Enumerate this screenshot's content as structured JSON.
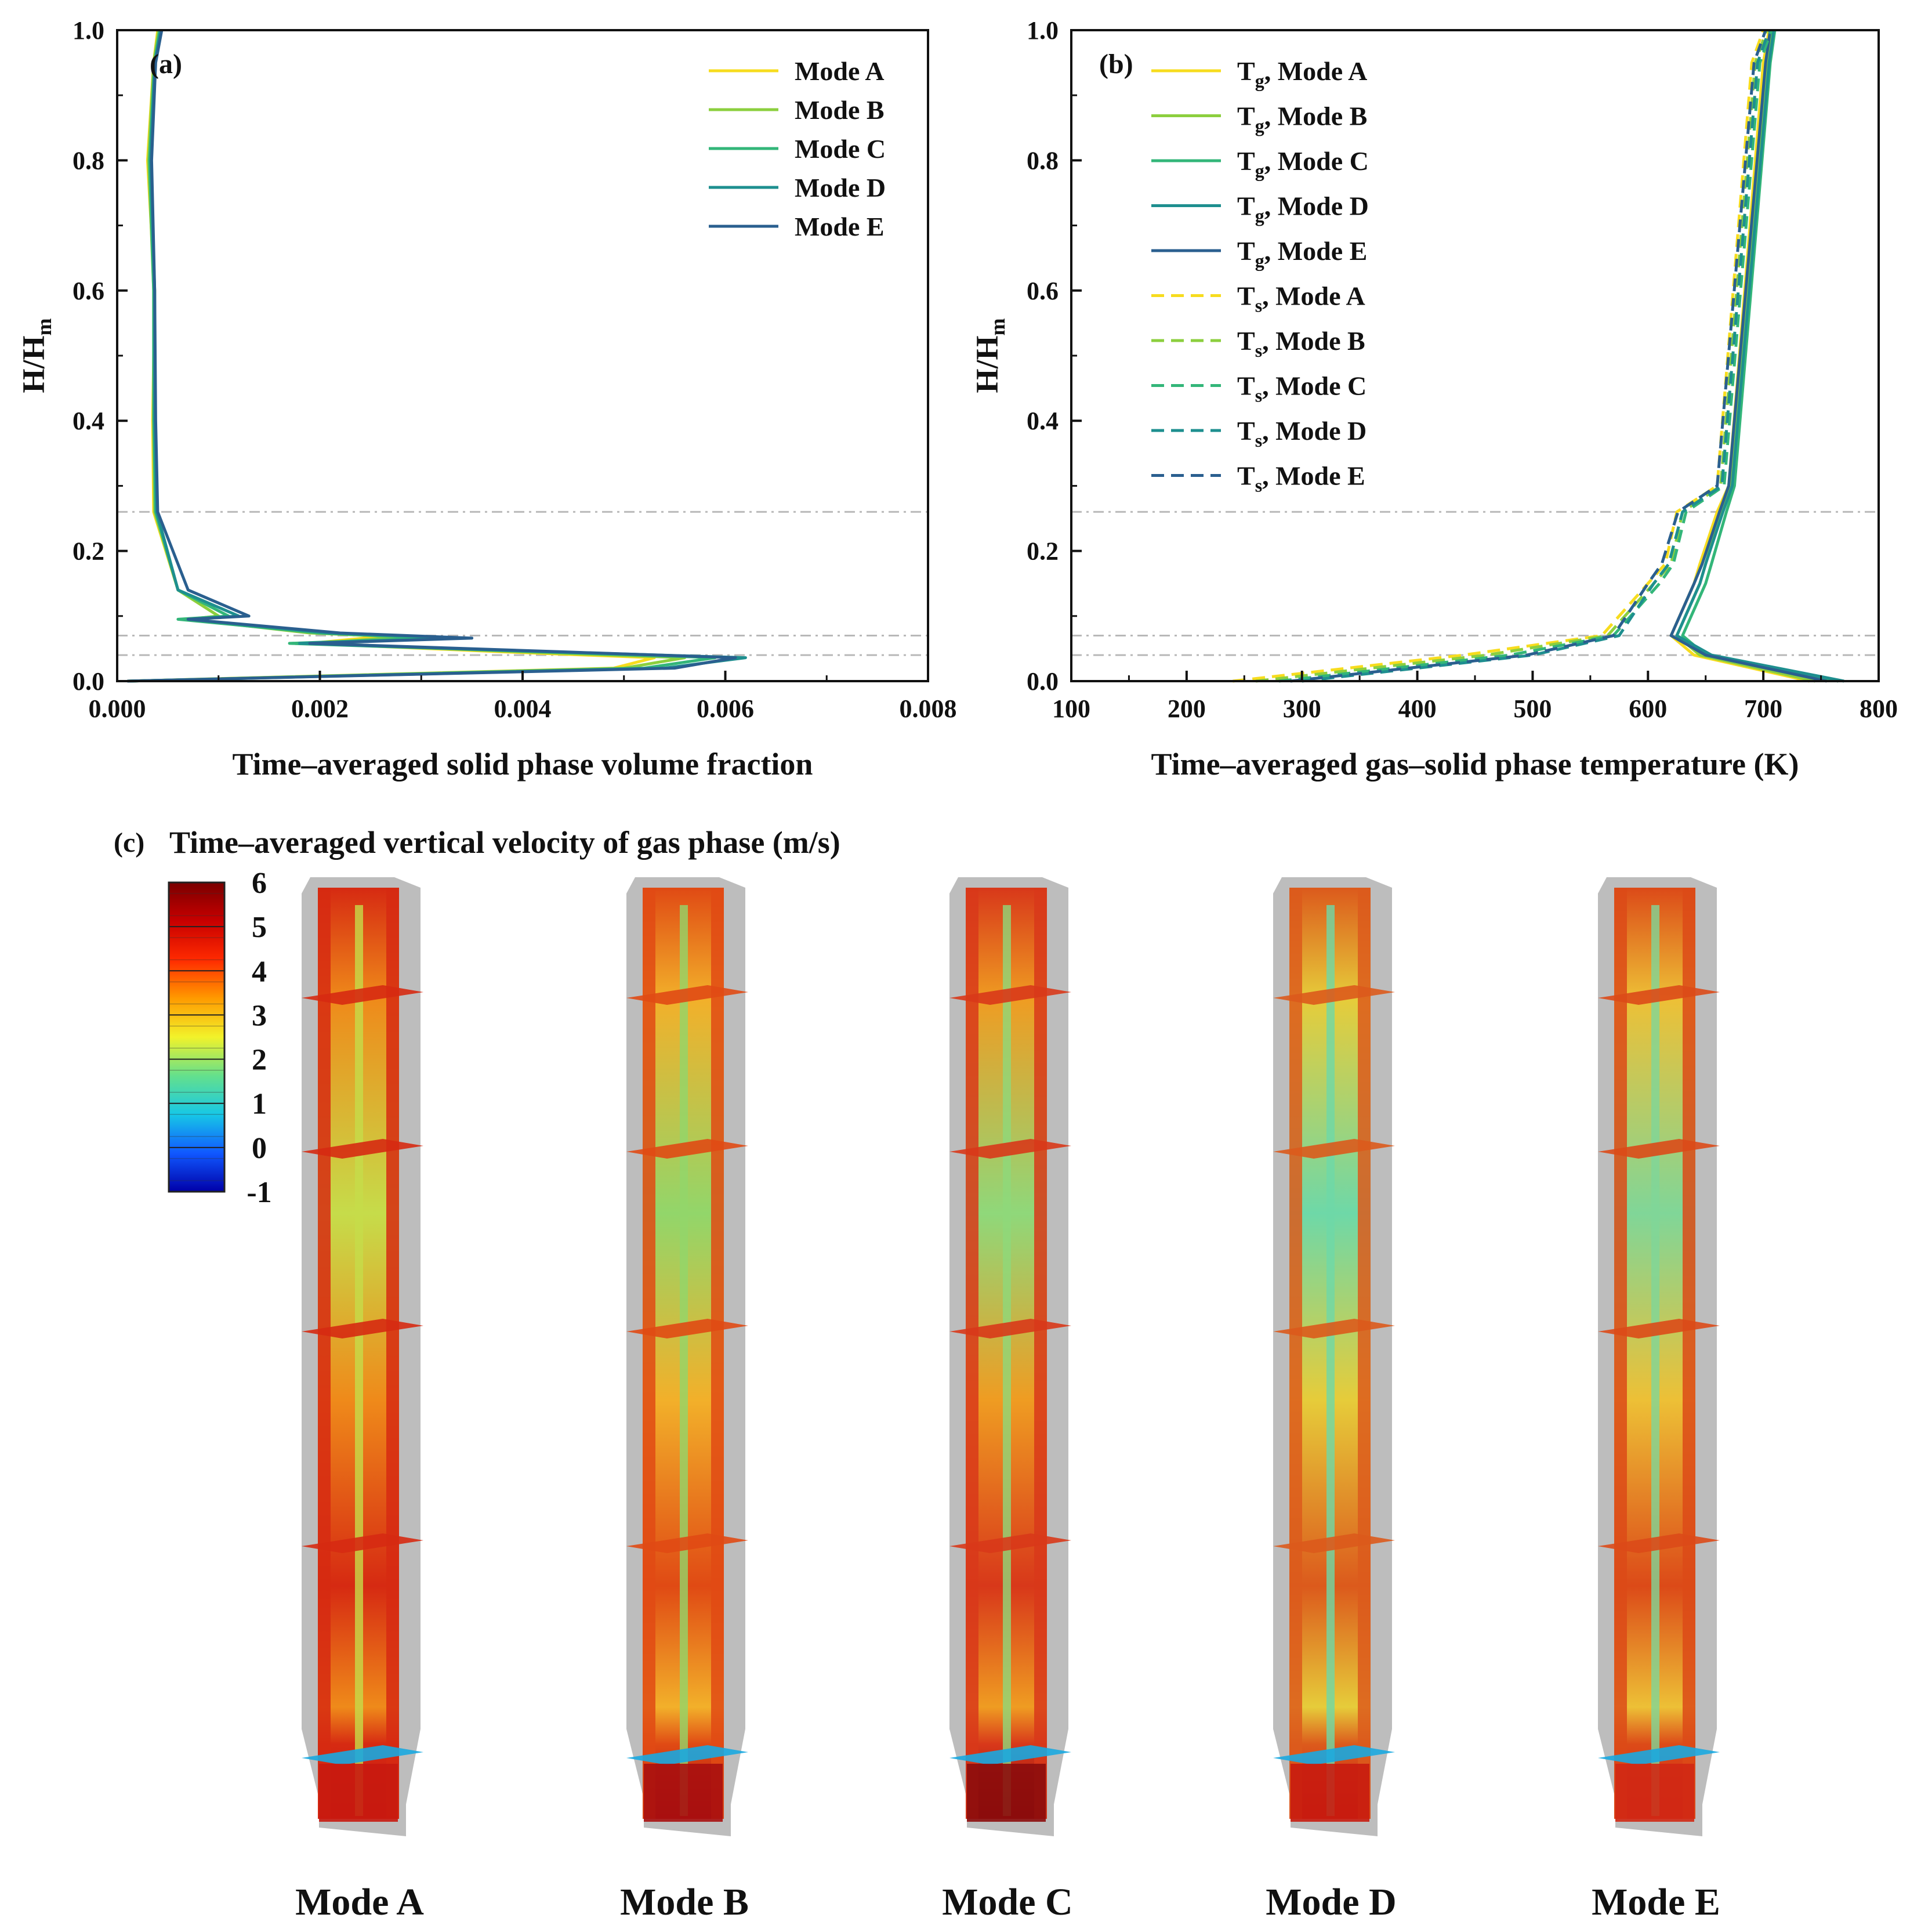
{
  "figure": {
    "panel_a_label": "(a)",
    "panel_b_label": "(b)",
    "panel_c_label": "(c)",
    "panel_c_title": "Time–averaged vertical velocity of gas phase (m/s)"
  },
  "colors": {
    "modeA": "#f7dc1e",
    "modeB": "#8ccf3e",
    "modeC": "#33b679",
    "modeD": "#1e8f8f",
    "modeE": "#2a5f8f",
    "reference_line": "#b8b8b8",
    "shell": "#bdbdbd"
  },
  "chart_data": [
    {
      "id": "a",
      "type": "line",
      "title": "(a)",
      "xlabel": "Time–averaged solid phase volume fraction",
      "ylabel": "H/H",
      "ylabel_sub": "m",
      "xlim": [
        0.0,
        0.008
      ],
      "ylim": [
        0.0,
        1.0
      ],
      "xticks": [
        "0.000",
        "0.002",
        "0.004",
        "0.006",
        "0.008"
      ],
      "xtick_values": [
        0.0,
        0.002,
        0.004,
        0.006,
        0.008
      ],
      "yticks": [
        "0.0",
        "0.2",
        "0.4",
        "0.6",
        "0.8",
        "1.0"
      ],
      "ytick_values": [
        0.0,
        0.2,
        0.4,
        0.6,
        0.8,
        1.0
      ],
      "reference_lines_y": [
        0.26,
        0.07,
        0.04
      ],
      "legend_position": "top-right",
      "legend": [
        "Mode A",
        "Mode B",
        "Mode C",
        "Mode D",
        "Mode E"
      ],
      "series": [
        {
          "name": "Mode A",
          "style": "solid",
          "x": [
            0.0001,
            0.0049,
            0.0053,
            0.0038,
            0.0019,
            0.0027,
            0.002,
            0.0007,
            0.001,
            0.0006,
            0.00036,
            0.00035,
            0.00037,
            0.0003,
            0.00036,
            0.0004
          ],
          "y": [
            0.0,
            0.02,
            0.036,
            0.045,
            0.058,
            0.07,
            0.075,
            0.095,
            0.1,
            0.14,
            0.26,
            0.4,
            0.6,
            0.8,
            0.95,
            1.0
          ]
        },
        {
          "name": "Mode B",
          "style": "solid",
          "x": [
            0.0001,
            0.005,
            0.0056,
            0.004,
            0.002,
            0.0028,
            0.0019,
            0.0007,
            0.001,
            0.0006,
            0.00037,
            0.00036,
            0.00036,
            0.00031,
            0.00036,
            0.00041
          ],
          "y": [
            0.0,
            0.02,
            0.036,
            0.045,
            0.058,
            0.068,
            0.074,
            0.095,
            0.1,
            0.14,
            0.26,
            0.4,
            0.6,
            0.8,
            0.95,
            1.0
          ]
        },
        {
          "name": "Mode C",
          "style": "solid",
          "x": [
            0.0001,
            0.0052,
            0.0059,
            0.0042,
            0.0017,
            0.0031,
            0.002,
            0.0006,
            0.0011,
            0.0006,
            0.00038,
            0.00036,
            0.00036,
            0.00032,
            0.00037,
            0.00042
          ],
          "y": [
            0.0,
            0.02,
            0.036,
            0.045,
            0.058,
            0.066,
            0.074,
            0.095,
            0.1,
            0.14,
            0.26,
            0.4,
            0.6,
            0.8,
            0.95,
            1.0
          ]
        },
        {
          "name": "Mode D",
          "style": "solid",
          "x": [
            0.0001,
            0.0054,
            0.0062,
            0.0043,
            0.0018,
            0.0034,
            0.0021,
            0.0007,
            0.0012,
            0.0006,
            0.00039,
            0.00037,
            0.00037,
            0.00033,
            0.00037,
            0.00043
          ],
          "y": [
            0.0,
            0.02,
            0.036,
            0.045,
            0.058,
            0.066,
            0.074,
            0.095,
            0.1,
            0.14,
            0.26,
            0.4,
            0.6,
            0.8,
            0.95,
            1.0
          ]
        },
        {
          "name": "Mode E",
          "style": "solid",
          "x": [
            0.0001,
            0.0055,
            0.0061,
            0.0044,
            0.0019,
            0.0035,
            0.0022,
            0.0007,
            0.0013,
            0.0007,
            0.0004,
            0.00038,
            0.00037,
            0.00034,
            0.00038,
            0.00044
          ],
          "y": [
            0.0,
            0.02,
            0.036,
            0.045,
            0.058,
            0.066,
            0.074,
            0.095,
            0.1,
            0.14,
            0.26,
            0.4,
            0.6,
            0.8,
            0.95,
            1.0
          ]
        }
      ]
    },
    {
      "id": "b",
      "type": "line",
      "title": "(b)",
      "xlabel": "Time–averaged gas–solid phase temperature (K)",
      "ylabel": "H/H",
      "ylabel_sub": "m",
      "xlim": [
        100,
        800
      ],
      "ylim": [
        0.0,
        1.0
      ],
      "xticks": [
        "100",
        "200",
        "300",
        "400",
        "500",
        "600",
        "700",
        "800"
      ],
      "xtick_values": [
        100,
        200,
        300,
        400,
        500,
        600,
        700,
        800
      ],
      "yticks": [
        "0.0",
        "0.2",
        "0.4",
        "0.6",
        "0.8",
        "1.0"
      ],
      "ytick_values": [
        0.0,
        0.2,
        0.4,
        0.6,
        0.8,
        1.0
      ],
      "reference_lines_y": [
        0.26,
        0.07,
        0.04
      ],
      "legend_position": "top-left",
      "legend": [
        {
          "var": "T",
          "sub": "g",
          "label": ", Mode A"
        },
        {
          "var": "T",
          "sub": "g",
          "label": ", Mode B"
        },
        {
          "var": "T",
          "sub": "g",
          "label": ", Mode C"
        },
        {
          "var": "T",
          "sub": "g",
          "label": ", Mode D"
        },
        {
          "var": "T",
          "sub": "g",
          "label": ", Mode E"
        },
        {
          "var": "T",
          "sub": "s",
          "label": ", Mode A"
        },
        {
          "var": "T",
          "sub": "s",
          "label": ", Mode B"
        },
        {
          "var": "T",
          "sub": "s",
          "label": ", Mode C"
        },
        {
          "var": "T",
          "sub": "s",
          "label": ", Mode D"
        },
        {
          "var": "T",
          "sub": "s",
          "label": ", Mode E"
        }
      ],
      "series": [
        {
          "name": "Tg, Mode A",
          "style": "solid",
          "x": [
            740,
            640,
            620,
            640,
            645,
            660,
            670,
            700,
            705
          ],
          "y": [
            0.0,
            0.04,
            0.07,
            0.15,
            0.18,
            0.26,
            0.3,
            0.95,
            1.0
          ]
        },
        {
          "name": "Tg, Mode B",
          "style": "solid",
          "x": [
            745,
            645,
            625,
            645,
            650,
            663,
            672,
            703,
            707
          ],
          "y": [
            0.0,
            0.04,
            0.07,
            0.15,
            0.18,
            0.26,
            0.3,
            0.95,
            1.0
          ]
        },
        {
          "name": "Tg, Mode C",
          "style": "solid",
          "x": [
            765,
            650,
            630,
            650,
            655,
            668,
            675,
            706,
            710
          ],
          "y": [
            0.0,
            0.04,
            0.07,
            0.15,
            0.18,
            0.26,
            0.3,
            0.95,
            1.0
          ]
        },
        {
          "name": "Tg, Mode D",
          "style": "solid",
          "x": [
            770,
            655,
            625,
            645,
            650,
            665,
            673,
            705,
            709
          ],
          "y": [
            0.0,
            0.04,
            0.07,
            0.15,
            0.18,
            0.26,
            0.3,
            0.95,
            1.0
          ]
        },
        {
          "name": "Tg, Mode E",
          "style": "solid",
          "x": [
            755,
            650,
            620,
            640,
            647,
            662,
            670,
            702,
            706
          ],
          "y": [
            0.0,
            0.04,
            0.07,
            0.15,
            0.18,
            0.26,
            0.3,
            0.95,
            1.0
          ]
        },
        {
          "name": "Ts, Mode A",
          "style": "dashed",
          "x": [
            240,
            440,
            560,
            600,
            615,
            625,
            660,
            690,
            700
          ],
          "y": [
            0.0,
            0.04,
            0.07,
            0.15,
            0.18,
            0.26,
            0.3,
            0.95,
            1.0
          ]
        },
        {
          "name": "Ts, Mode B",
          "style": "dashed",
          "x": [
            260,
            460,
            565,
            605,
            620,
            630,
            663,
            693,
            703
          ],
          "y": [
            0.0,
            0.04,
            0.07,
            0.15,
            0.18,
            0.26,
            0.3,
            0.95,
            1.0
          ]
        },
        {
          "name": "Ts, Mode C",
          "style": "dashed",
          "x": [
            280,
            480,
            570,
            610,
            622,
            633,
            666,
            697,
            707
          ],
          "y": [
            0.0,
            0.04,
            0.07,
            0.15,
            0.18,
            0.26,
            0.3,
            0.95,
            1.0
          ]
        },
        {
          "name": "Ts, Mode D",
          "style": "dashed",
          "x": [
            300,
            500,
            575,
            605,
            618,
            630,
            664,
            695,
            705
          ],
          "y": [
            0.0,
            0.04,
            0.07,
            0.15,
            0.18,
            0.26,
            0.3,
            0.95,
            1.0
          ]
        },
        {
          "name": "Ts, Mode E",
          "style": "dashed",
          "x": [
            290,
            495,
            570,
            600,
            612,
            626,
            660,
            692,
            702
          ],
          "y": [
            0.0,
            0.04,
            0.07,
            0.15,
            0.18,
            0.26,
            0.3,
            0.95,
            1.0
          ]
        }
      ]
    }
  ],
  "colorbar": {
    "title": "Time–averaged vertical velocity of gas phase (m/s)",
    "ticks": [
      "6",
      "5",
      "4",
      "3",
      "2",
      "1",
      "0",
      "-1"
    ],
    "tick_values": [
      6,
      5,
      4,
      3,
      2,
      1,
      0,
      -1
    ],
    "range": [
      -1,
      6
    ],
    "stops": [
      "#7a0000",
      "#c80000",
      "#ff2a00",
      "#ff9a00",
      "#f2f22a",
      "#64e08c",
      "#17c8e6",
      "#1058ff",
      "#0000a8"
    ]
  },
  "contours": [
    {
      "label": "Mode A",
      "core": "#ef8a1a",
      "hot": "#d62a12",
      "cool": "#c6dc4a",
      "base": "#c81a10"
    },
    {
      "label": "Mode B",
      "core": "#f2b02a",
      "hot": "#e04a14",
      "cool": "#92d66a",
      "base": "#a81010"
    },
    {
      "label": "Mode C",
      "core": "#ef9c22",
      "hot": "#d8381a",
      "cool": "#8fd87a",
      "base": "#8c0c0c"
    },
    {
      "label": "Mode D",
      "core": "#e6cc3a",
      "hot": "#dc5a1c",
      "cool": "#6ed8a8",
      "base": "#c81c10"
    },
    {
      "label": "Mode E",
      "core": "#edc036",
      "hot": "#dc4a18",
      "cool": "#80d698",
      "base": "#d02814"
    }
  ]
}
